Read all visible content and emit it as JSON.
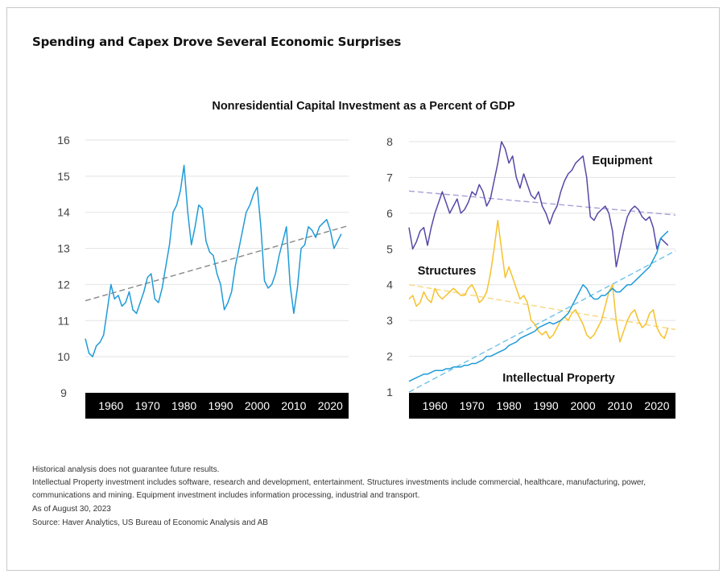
{
  "header": {
    "page_title": "Spending and Capex Drove Several Economic Surprises",
    "chart_title": "Nonresidential Capital Investment as a Percent of GDP"
  },
  "footnotes": {
    "line1": "Historical analysis does not guarantee future results.",
    "line2": "Intellectual Property investment includes software, research and development, entertainment. Structures investments include commercial, healthcare, manufacturing, power, communications and mining. Equipment investment includes information processing, industrial and transport.",
    "line3": "As of August 30, 2023",
    "line4": "Source: Haver Analytics, US Bureau of Economic Analysis and AB"
  },
  "chart_data": [
    {
      "type": "line",
      "title": "",
      "xlabel": "",
      "ylabel": "",
      "xlim": [
        1953,
        2025
      ],
      "ylim": [
        9,
        16
      ],
      "x_ticks": [
        1960,
        1970,
        1980,
        1990,
        2000,
        2010,
        2020
      ],
      "y_ticks": [
        9,
        10,
        11,
        12,
        13,
        14,
        15,
        16
      ],
      "grid": "horizontal",
      "series": [
        {
          "color": "#1f9bd7",
          "x": [
            1953,
            1954,
            1955,
            1956,
            1957,
            1958,
            1959,
            1960,
            1961,
            1962,
            1963,
            1964,
            1965,
            1966,
            1967,
            1968,
            1969,
            1970,
            1971,
            1972,
            1973,
            1974,
            1975,
            1976,
            1977,
            1978,
            1979,
            1980,
            1981,
            1982,
            1983,
            1984,
            1985,
            1986,
            1987,
            1988,
            1989,
            1990,
            1991,
            1992,
            1993,
            1994,
            1995,
            1996,
            1997,
            1998,
            1999,
            2000,
            2001,
            2002,
            2003,
            2004,
            2005,
            2006,
            2007,
            2008,
            2009,
            2010,
            2011,
            2012,
            2013,
            2014,
            2015,
            2016,
            2017,
            2018,
            2019,
            2020,
            2021,
            2022,
            2023
          ],
          "y": [
            10.5,
            10.1,
            10.0,
            10.3,
            10.4,
            10.6,
            11.3,
            12.0,
            11.6,
            11.7,
            11.4,
            11.5,
            11.8,
            11.3,
            11.2,
            11.5,
            11.8,
            12.2,
            12.3,
            11.6,
            11.5,
            11.9,
            12.5,
            13.1,
            14.0,
            14.2,
            14.6,
            15.3,
            14.0,
            13.1,
            13.6,
            14.2,
            14.1,
            13.2,
            12.9,
            12.8,
            12.3,
            12.0,
            11.3,
            11.5,
            11.8,
            12.5,
            13.0,
            13.5,
            14.0,
            14.2,
            14.5,
            14.7,
            13.6,
            12.1,
            11.9,
            12.0,
            12.3,
            12.8,
            13.2,
            13.6,
            12.0,
            11.2,
            11.9,
            13.0,
            13.1,
            13.6,
            13.5,
            13.3,
            13.6,
            13.7,
            13.8,
            13.5,
            13.0,
            13.2,
            13.4
          ]
        },
        {
          "color": "#888888",
          "dashed": true,
          "x": [
            1953,
            2025
          ],
          "y": [
            11.55,
            13.63
          ]
        }
      ]
    },
    {
      "type": "line",
      "title": "",
      "xlabel": "",
      "ylabel": "",
      "xlim": [
        1953,
        2025
      ],
      "ylim": [
        1,
        8
      ],
      "x_ticks": [
        1960,
        1970,
        1980,
        1990,
        2000,
        2010,
        2020
      ],
      "y_ticks": [
        1,
        2,
        3,
        4,
        5,
        6,
        7,
        8
      ],
      "grid": "horizontal",
      "series": [
        {
          "name": "Equipment",
          "color": "#5847a6",
          "x": [
            1953,
            1954,
            1955,
            1956,
            1957,
            1958,
            1959,
            1960,
            1961,
            1962,
            1963,
            1964,
            1965,
            1966,
            1967,
            1968,
            1969,
            1970,
            1971,
            1972,
            1973,
            1974,
            1975,
            1976,
            1977,
            1978,
            1979,
            1980,
            1981,
            1982,
            1983,
            1984,
            1985,
            1986,
            1987,
            1988,
            1989,
            1990,
            1991,
            1992,
            1993,
            1994,
            1995,
            1996,
            1997,
            1998,
            1999,
            2000,
            2001,
            2002,
            2003,
            2004,
            2005,
            2006,
            2007,
            2008,
            2009,
            2010,
            2011,
            2012,
            2013,
            2014,
            2015,
            2016,
            2017,
            2018,
            2019,
            2020,
            2021,
            2022,
            2023
          ],
          "y": [
            5.6,
            5.0,
            5.2,
            5.5,
            5.6,
            5.1,
            5.6,
            6.0,
            6.3,
            6.6,
            6.3,
            6.0,
            6.2,
            6.4,
            6.0,
            6.1,
            6.3,
            6.6,
            6.5,
            6.8,
            6.6,
            6.2,
            6.4,
            6.9,
            7.4,
            8.0,
            7.8,
            7.4,
            7.6,
            7.0,
            6.7,
            7.1,
            6.8,
            6.5,
            6.4,
            6.6,
            6.2,
            6.0,
            5.7,
            6.0,
            6.2,
            6.6,
            6.9,
            7.1,
            7.2,
            7.4,
            7.5,
            7.6,
            7.0,
            5.9,
            5.8,
            6.0,
            6.1,
            6.2,
            6.0,
            5.5,
            4.5,
            5.0,
            5.5,
            5.9,
            6.1,
            6.2,
            6.1,
            5.9,
            5.8,
            5.9,
            5.6,
            5.0,
            5.3,
            5.2,
            5.1
          ]
        },
        {
          "name": "Structures",
          "color": "#f5c12c",
          "x": [
            1953,
            1954,
            1955,
            1956,
            1957,
            1958,
            1959,
            1960,
            1961,
            1962,
            1963,
            1964,
            1965,
            1966,
            1967,
            1968,
            1969,
            1970,
            1971,
            1972,
            1973,
            1974,
            1975,
            1976,
            1977,
            1978,
            1979,
            1980,
            1981,
            1982,
            1983,
            1984,
            1985,
            1986,
            1987,
            1988,
            1989,
            1990,
            1991,
            1992,
            1993,
            1994,
            1995,
            1996,
            1997,
            1998,
            1999,
            2000,
            2001,
            2002,
            2003,
            2004,
            2005,
            2006,
            2007,
            2008,
            2009,
            2010,
            2011,
            2012,
            2013,
            2014,
            2015,
            2016,
            2017,
            2018,
            2019,
            2020,
            2021,
            2022,
            2023
          ],
          "y": [
            3.6,
            3.7,
            3.4,
            3.5,
            3.8,
            3.6,
            3.5,
            3.9,
            3.7,
            3.6,
            3.7,
            3.8,
            3.9,
            3.8,
            3.7,
            3.7,
            3.9,
            4.0,
            3.8,
            3.5,
            3.6,
            3.8,
            4.3,
            5.0,
            5.8,
            5.0,
            4.2,
            4.5,
            4.2,
            3.9,
            3.6,
            3.7,
            3.5,
            3.0,
            2.9,
            2.7,
            2.6,
            2.7,
            2.5,
            2.6,
            2.8,
            3.0,
            3.1,
            3.0,
            3.2,
            3.3,
            3.1,
            2.9,
            2.6,
            2.5,
            2.6,
            2.8,
            3.0,
            3.4,
            3.8,
            4.0,
            3.0,
            2.4,
            2.7,
            3.0,
            3.2,
            3.3,
            3.0,
            2.8,
            2.9,
            3.2,
            3.3,
            2.8,
            2.6,
            2.5,
            2.8
          ]
        },
        {
          "name": "Intellectual Property",
          "color": "#1f9bd7",
          "x": [
            1953,
            1954,
            1955,
            1956,
            1957,
            1958,
            1959,
            1960,
            1961,
            1962,
            1963,
            1964,
            1965,
            1966,
            1967,
            1968,
            1969,
            1970,
            1971,
            1972,
            1973,
            1974,
            1975,
            1976,
            1977,
            1978,
            1979,
            1980,
            1981,
            1982,
            1983,
            1984,
            1985,
            1986,
            1987,
            1988,
            1989,
            1990,
            1991,
            1992,
            1993,
            1994,
            1995,
            1996,
            1997,
            1998,
            1999,
            2000,
            2001,
            2002,
            2003,
            2004,
            2005,
            2006,
            2007,
            2008,
            2009,
            2010,
            2011,
            2012,
            2013,
            2014,
            2015,
            2016,
            2017,
            2018,
            2019,
            2020,
            2021,
            2022,
            2023
          ],
          "y": [
            1.3,
            1.35,
            1.4,
            1.45,
            1.5,
            1.5,
            1.55,
            1.6,
            1.6,
            1.6,
            1.65,
            1.65,
            1.7,
            1.7,
            1.7,
            1.75,
            1.75,
            1.8,
            1.8,
            1.85,
            1.9,
            2.0,
            2.0,
            2.05,
            2.1,
            2.15,
            2.2,
            2.3,
            2.35,
            2.4,
            2.5,
            2.55,
            2.6,
            2.65,
            2.7,
            2.8,
            2.85,
            2.9,
            2.95,
            2.9,
            2.95,
            3.0,
            3.1,
            3.2,
            3.4,
            3.6,
            3.8,
            4.0,
            3.9,
            3.7,
            3.6,
            3.6,
            3.7,
            3.7,
            3.8,
            3.9,
            3.8,
            3.8,
            3.9,
            4.0,
            4.0,
            4.1,
            4.2,
            4.3,
            4.4,
            4.5,
            4.7,
            4.9,
            5.3,
            5.4,
            5.5
          ]
        },
        {
          "color": "#a99ed6",
          "dashed": true,
          "x": [
            1953,
            2025
          ],
          "y": [
            6.62,
            5.95
          ]
        },
        {
          "color": "#f7d77e",
          "dashed": true,
          "x": [
            1953,
            2025
          ],
          "y": [
            4.0,
            2.75
          ]
        },
        {
          "color": "#6ec1e8",
          "dashed": true,
          "x": [
            1953,
            2025
          ],
          "y": [
            1.0,
            4.95
          ]
        }
      ]
    }
  ]
}
